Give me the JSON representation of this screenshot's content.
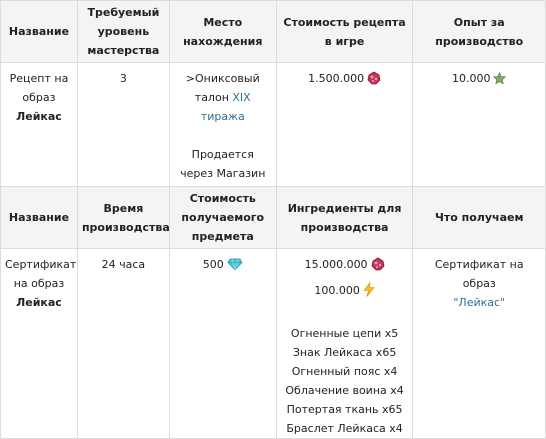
{
  "header1": {
    "name": "Название",
    "level": "Требуемый уровень мастерства",
    "location": "Место нахождения",
    "recipe_cost": "Стоимость рецепта в игре",
    "exp": "Опыт за производство"
  },
  "row1": {
    "name_line1": "Рецепт на образ",
    "name_bold": "Лейкас",
    "level": "3",
    "location_prefix": ">Ониксовый талон ",
    "location_link": "XIX тиража",
    "sold_text": "Продается через Магазин",
    "recipe_cost": "1.500.000",
    "exp": "10.000"
  },
  "header2": {
    "name": "Название",
    "time": "Время производства",
    "item_cost": "Стоимость получаемого предмета",
    "ingredients": "Ингредиенты для производства",
    "result": "Что получаем"
  },
  "row2": {
    "name_line1": "Сертификат на образ",
    "name_bold": "Лейкас",
    "time": "24 часа",
    "item_cost": "500",
    "ingredient_cost1": "15.000.000",
    "ingredient_cost2": "100.000",
    "ingredients": [
      "Огненные цепи x5",
      "Знак Лейкаса x65",
      "Огненный пояс x4",
      "Облачение воина x4",
      "Потертая ткань x65",
      "Браслет Лейкаса x4"
    ],
    "result_prefix": "Сертификат на образ",
    "result_link": "\"Лейкас\""
  },
  "icons": {
    "currency": "ruby-gem-icon",
    "exp": "green-star-icon",
    "diamond": "diamond-icon",
    "energy": "lightning-icon"
  }
}
